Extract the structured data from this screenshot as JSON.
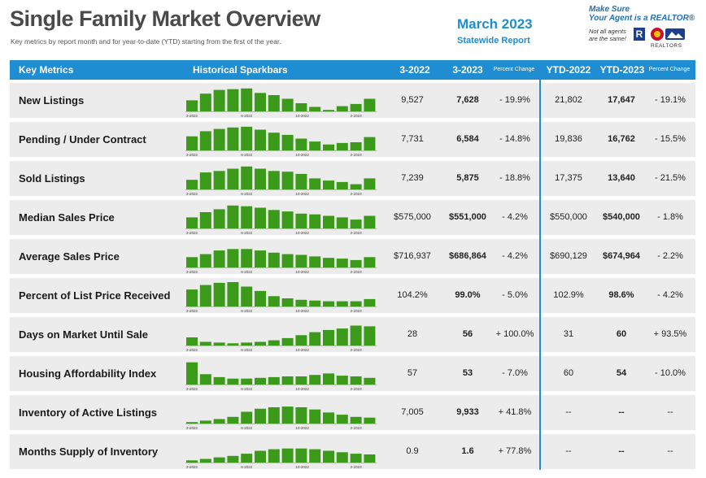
{
  "header": {
    "title": "Single Family Market Overview",
    "subtitle": "Key metrics by report month and for year-to-date (YTD) starting from the first of the year.",
    "report_month": "March 2023",
    "report_scope": "Statewide Report",
    "tagline_line1": "Make Sure",
    "tagline_line2": "Your Agent is a REALTOR®",
    "disclaimer_line1": "Not all agents",
    "disclaimer_line2": "are the same!",
    "r_logo": "R",
    "org_logo_icon": "colorado-realtors-logo-icon",
    "org_name": "REALTORS"
  },
  "table": {
    "columns": {
      "metric": "Key Metrics",
      "sparkbars": "Historical Sparkbars",
      "prev_month": "3-2022",
      "curr_month": "3-2023",
      "pct_change": "Percent Change",
      "ytd_prev": "YTD-2022",
      "ytd_curr": "YTD-2023",
      "ytd_pct_change": "Percent Change"
    },
    "rows": [
      {
        "metric": "New Listings",
        "prev": "9,527",
        "curr": "7,628",
        "pct": "- 19.9%",
        "ytd_prev": "21,802",
        "ytd_curr": "17,647",
        "ytd_pct": "- 19.1%"
      },
      {
        "metric": "Pending / Under Contract",
        "prev": "7,731",
        "curr": "6,584",
        "pct": "- 14.8%",
        "ytd_prev": "19,836",
        "ytd_curr": "16,762",
        "ytd_pct": "- 15.5%"
      },
      {
        "metric": "Sold Listings",
        "prev": "7,239",
        "curr": "5,875",
        "pct": "- 18.8%",
        "ytd_prev": "17,375",
        "ytd_curr": "13,640",
        "ytd_pct": "- 21.5%"
      },
      {
        "metric": "Median Sales Price",
        "prev": "$575,000",
        "curr": "$551,000",
        "pct": "- 4.2%",
        "ytd_prev": "$550,000",
        "ytd_curr": "$540,000",
        "ytd_pct": "- 1.8%"
      },
      {
        "metric": "Average Sales Price",
        "prev": "$716,937",
        "curr": "$686,864",
        "pct": "- 4.2%",
        "ytd_prev": "$690,129",
        "ytd_curr": "$674,964",
        "ytd_pct": "- 2.2%"
      },
      {
        "metric": "Percent of List Price Received",
        "prev": "104.2%",
        "curr": "99.0%",
        "pct": "- 5.0%",
        "ytd_prev": "102.9%",
        "ytd_curr": "98.6%",
        "ytd_pct": "- 4.2%"
      },
      {
        "metric": "Days on Market Until Sale",
        "prev": "28",
        "curr": "56",
        "pct": "+ 100.0%",
        "ytd_prev": "31",
        "ytd_curr": "60",
        "ytd_pct": "+ 93.5%"
      },
      {
        "metric": "Housing Affordability Index",
        "prev": "57",
        "curr": "53",
        "pct": "- 7.0%",
        "ytd_prev": "60",
        "ytd_curr": "54",
        "ytd_pct": "- 10.0%"
      },
      {
        "metric": "Inventory of Active Listings",
        "prev": "7,005",
        "curr": "9,933",
        "pct": "+ 41.8%",
        "ytd_prev": "--",
        "ytd_curr": "--",
        "ytd_pct": "--"
      },
      {
        "metric": "Months Supply of Inventory",
        "prev": "0.9",
        "curr": "1.6",
        "pct": "+ 77.8%",
        "ytd_prev": "--",
        "ytd_curr": "--",
        "ytd_pct": "--"
      }
    ]
  },
  "colors": {
    "header_bg": "#1f8dd1",
    "title_text": "#4a4a4a",
    "accent_blue": "#1f8dd1",
    "bar_green": "#3c9a1a",
    "row_bg": "#ececec"
  },
  "chart_data": {
    "type": "bar",
    "tick_labels": [
      "2-2022",
      "6-2022",
      "10-2022",
      "2-2023"
    ],
    "tick_positions": [
      0,
      4,
      8,
      12
    ],
    "months": 14,
    "values_are_relative": true,
    "series": [
      {
        "name": "New Listings",
        "values": [
          30,
          48,
          58,
          60,
          62,
          50,
          44,
          34,
          22,
          12,
          4,
          14,
          20,
          34
        ]
      },
      {
        "name": "Pending / Under Contract",
        "values": [
          38,
          52,
          58,
          62,
          64,
          56,
          48,
          42,
          32,
          24,
          16,
          20,
          22,
          36
        ]
      },
      {
        "name": "Sold Listings",
        "values": [
          26,
          46,
          50,
          56,
          62,
          56,
          50,
          48,
          42,
          30,
          24,
          20,
          14,
          30
        ]
      },
      {
        "name": "Median Sales Price",
        "values": [
          30,
          44,
          52,
          62,
          60,
          56,
          50,
          46,
          40,
          38,
          34,
          30,
          24,
          34
        ]
      },
      {
        "name": "Average Sales Price",
        "values": [
          28,
          36,
          46,
          50,
          50,
          46,
          40,
          36,
          34,
          30,
          26,
          24,
          20,
          28
        ]
      },
      {
        "name": "Percent of List Price Received",
        "values": [
          46,
          58,
          64,
          66,
          54,
          42,
          28,
          22,
          18,
          16,
          14,
          14,
          14,
          20
        ]
      },
      {
        "name": "Days on Market Until Sale",
        "values": [
          22,
          10,
          8,
          6,
          8,
          10,
          14,
          20,
          28,
          36,
          42,
          46,
          54,
          52
        ]
      },
      {
        "name": "Housing Affordability Index",
        "values": [
          60,
          28,
          20,
          16,
          16,
          18,
          20,
          22,
          22,
          26,
          30,
          24,
          22,
          18
        ]
      },
      {
        "name": "Inventory of Active Listings",
        "values": [
          4,
          8,
          12,
          18,
          32,
          40,
          44,
          46,
          44,
          38,
          30,
          24,
          18,
          16
        ]
      },
      {
        "name": "Months Supply of Inventory",
        "values": [
          6,
          10,
          14,
          18,
          24,
          32,
          36,
          38,
          38,
          36,
          32,
          28,
          24,
          22
        ]
      }
    ]
  }
}
